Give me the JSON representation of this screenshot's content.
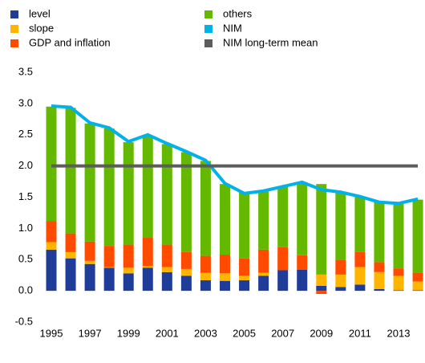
{
  "chart_data": {
    "type": "bar",
    "stacked": true,
    "categories": [
      "1995",
      null,
      "1997",
      null,
      "1999",
      null,
      "2001",
      null,
      "2003",
      null,
      "2005",
      null,
      "2007",
      null,
      "2009",
      null,
      "2011",
      null,
      "2013",
      null
    ],
    "series": [
      {
        "name": "level",
        "type": "bar",
        "color": "#1f3c99",
        "values": [
          0.66,
          0.52,
          0.43,
          0.37,
          0.28,
          0.37,
          0.3,
          0.24,
          0.17,
          0.16,
          0.17,
          0.24,
          0.33,
          0.34,
          0.08,
          0.06,
          0.1,
          0.03,
          0.01,
          0.01
        ]
      },
      {
        "name": "slope",
        "type": "bar",
        "color": "#ffb400",
        "values": [
          0.12,
          0.1,
          0.05,
          0.01,
          0.09,
          0.03,
          0.08,
          0.11,
          0.12,
          0.12,
          0.07,
          0.05,
          0.0,
          0.0,
          0.18,
          0.2,
          0.28,
          0.27,
          0.23,
          0.14
        ]
      },
      {
        "name": "GDP and inflation",
        "type": "bar",
        "color": "#ff4b00",
        "values": [
          0.34,
          0.3,
          0.31,
          0.34,
          0.37,
          0.45,
          0.36,
          0.27,
          0.27,
          0.3,
          0.28,
          0.37,
          0.37,
          0.23,
          -0.05,
          0.24,
          0.24,
          0.16,
          0.12,
          0.14
        ]
      },
      {
        "name": "others",
        "type": "bar",
        "color": "#65b800",
        "values": [
          1.83,
          2.01,
          1.89,
          1.88,
          1.64,
          1.64,
          1.61,
          1.6,
          1.52,
          1.13,
          1.05,
          0.94,
          0.97,
          1.17,
          1.45,
          1.07,
          0.88,
          0.96,
          1.03,
          1.17
        ]
      },
      {
        "name": "NIM",
        "type": "line",
        "color": "#00b1ea",
        "values": [
          2.96,
          2.94,
          2.69,
          2.61,
          2.39,
          2.5,
          2.36,
          2.23,
          2.09,
          1.72,
          1.56,
          1.6,
          1.67,
          1.74,
          1.62,
          1.58,
          1.51,
          1.42,
          1.4,
          1.47
        ]
      },
      {
        "name": "NIM long-term mean",
        "type": "line",
        "color": "#5c5c5c",
        "values": [
          2.0,
          2.0,
          2.0,
          2.0,
          2.0,
          2.0,
          2.0,
          2.0,
          2.0,
          2.0,
          2.0,
          2.0,
          2.0,
          2.0,
          2.0,
          2.0,
          2.0,
          2.0,
          2.0,
          2.0
        ]
      }
    ],
    "ylim": [
      -0.5,
      3.5
    ],
    "yticks": [
      -0.5,
      {
        "value": 0,
        "label": "0.0"
      },
      0.5,
      {
        "value": 1,
        "label": "1.0"
      },
      1.5,
      {
        "value": 2,
        "label": "2.0"
      },
      2.5,
      {
        "value": 3,
        "label": "3.0"
      },
      3.5
    ],
    "grid": false,
    "legend": "top"
  }
}
